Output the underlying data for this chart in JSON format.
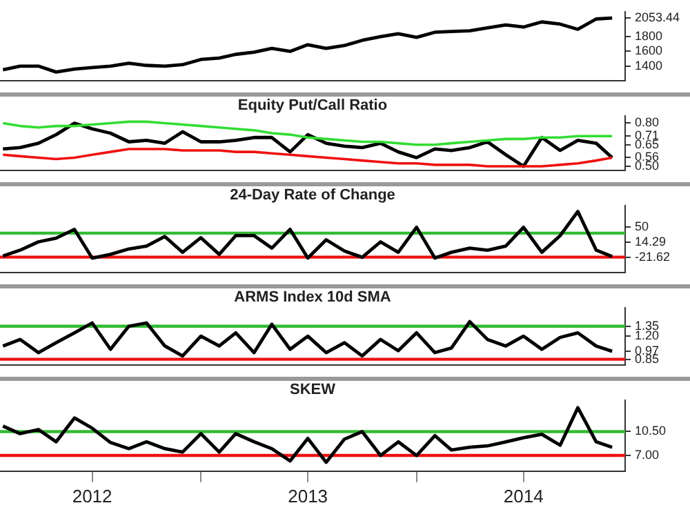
{
  "chart_data": [
    {
      "type": "line",
      "xlim": [
        "2012-01-27",
        "2014-12-20"
      ],
      "ylim": [
        1200,
        2140
      ],
      "yticks": [
        1400,
        1600,
        1800,
        2053.44
      ],
      "tick_labels": "y",
      "x": [
        "2012-02",
        "2012-03",
        "2012-04",
        "2012-05",
        "2012-06",
        "2012-07",
        "2012-08",
        "2012-09",
        "2012-10",
        "2012-11",
        "2012-12",
        "2013-01",
        "2013-02",
        "2013-03",
        "2013-04",
        "2013-05",
        "2013-06",
        "2013-07",
        "2013-08",
        "2013-09",
        "2013-10",
        "2013-11",
        "2013-12",
        "2014-01",
        "2014-02",
        "2014-03",
        "2014-04",
        "2014-05",
        "2014-06",
        "2014-07",
        "2014-08",
        "2014-09",
        "2014-10",
        "2014-11",
        "2014-11-28"
      ],
      "series": [
        {
          "color": "#000000",
          "values": [
            1350,
            1400,
            1400,
            1320,
            1360,
            1380,
            1400,
            1440,
            1410,
            1400,
            1420,
            1490,
            1510,
            1560,
            1590,
            1640,
            1600,
            1690,
            1640,
            1680,
            1750,
            1800,
            1840,
            1790,
            1860,
            1870,
            1880,
            1920,
            1960,
            1930,
            2000,
            1970,
            1900,
            2040,
            2053.44
          ]
        }
      ]
    },
    {
      "type": "line",
      "title": "Equity Put/Call Ratio",
      "xlim": [
        "2012-01-27",
        "2014-12-20"
      ],
      "ylim": [
        0.47,
        0.85
      ],
      "tick_labels": "y",
      "yticks": [
        {
          "value": 0.5,
          "label": "0.50"
        },
        0.56,
        0.65,
        0.71,
        {
          "value": 0.8,
          "label": "0.80"
        }
      ],
      "x": [
        "2012-02",
        "2012-03",
        "2012-04",
        "2012-05",
        "2012-06",
        "2012-07",
        "2012-08",
        "2012-09",
        "2012-10",
        "2012-11",
        "2012-12",
        "2013-01",
        "2013-02",
        "2013-03",
        "2013-04",
        "2013-05",
        "2013-06",
        "2013-07",
        "2013-08",
        "2013-09",
        "2013-10",
        "2013-11",
        "2013-12",
        "2014-01",
        "2014-02",
        "2014-03",
        "2014-04",
        "2014-05",
        "2014-06",
        "2014-07",
        "2014-08",
        "2014-09",
        "2014-10",
        "2014-11",
        "2014-11-28"
      ],
      "series": [
        {
          "color": "#33dd33",
          "values": [
            0.8,
            0.78,
            0.77,
            0.78,
            0.78,
            0.79,
            0.8,
            0.81,
            0.81,
            0.8,
            0.79,
            0.78,
            0.77,
            0.76,
            0.75,
            0.73,
            0.72,
            0.7,
            0.69,
            0.68,
            0.67,
            0.67,
            0.66,
            0.65,
            0.65,
            0.66,
            0.67,
            0.68,
            0.69,
            0.69,
            0.7,
            0.7,
            0.71,
            0.71,
            0.71
          ]
        },
        {
          "color": "#ee1111",
          "values": [
            0.58,
            0.57,
            0.56,
            0.55,
            0.56,
            0.58,
            0.6,
            0.62,
            0.62,
            0.62,
            0.61,
            0.61,
            0.61,
            0.6,
            0.6,
            0.59,
            0.58,
            0.57,
            0.56,
            0.55,
            0.54,
            0.53,
            0.52,
            0.52,
            0.51,
            0.51,
            0.51,
            0.5,
            0.5,
            0.5,
            0.5,
            0.51,
            0.52,
            0.54,
            0.56
          ]
        },
        {
          "color": "#000000",
          "values": [
            0.62,
            0.63,
            0.66,
            0.72,
            0.8,
            0.76,
            0.73,
            0.67,
            0.68,
            0.66,
            0.74,
            0.67,
            0.67,
            0.68,
            0.7,
            0.7,
            0.6,
            0.72,
            0.66,
            0.64,
            0.63,
            0.66,
            0.6,
            0.56,
            0.62,
            0.61,
            0.63,
            0.67,
            0.58,
            0.5,
            0.7,
            0.61,
            0.68,
            0.66,
            0.56
          ]
        }
      ]
    },
    {
      "type": "line",
      "title": "24-Day Rate of Change",
      "xlim": [
        "2012-01-27",
        "2014-12-20"
      ],
      "ylim": [
        -59,
        102
      ],
      "tick_labels": "y",
      "yticks": [
        -21.62,
        14.29,
        50
      ],
      "ref_lines": [
        {
          "axis": "y",
          "value": 36,
          "color": "#33bb33"
        },
        {
          "axis": "y",
          "value": -21.62,
          "color": "#ee1111"
        }
      ],
      "x": [
        "2012-02",
        "2012-03",
        "2012-04",
        "2012-05",
        "2012-06",
        "2012-07",
        "2012-08",
        "2012-09",
        "2012-10",
        "2012-11",
        "2012-12",
        "2013-01",
        "2013-02",
        "2013-03",
        "2013-04",
        "2013-05",
        "2013-06",
        "2013-07",
        "2013-08",
        "2013-09",
        "2013-10",
        "2013-11",
        "2013-12",
        "2014-01",
        "2014-02",
        "2014-03",
        "2014-04",
        "2014-05",
        "2014-06",
        "2014-07",
        "2014-08",
        "2014-09",
        "2014-10",
        "2014-11",
        "2014-11-28"
      ],
      "series": [
        {
          "color": "#000000",
          "values": [
            -19,
            -5,
            15,
            24,
            45,
            -24,
            -15,
            -2,
            5,
            28,
            -10,
            25,
            -15,
            30,
            30,
            0,
            45,
            -24,
            20,
            -7,
            -22,
            15,
            -10,
            50,
            -24,
            -10,
            0,
            -5,
            5,
            50,
            -10,
            30,
            88,
            -5,
            -20
          ]
        }
      ]
    },
    {
      "type": "line",
      "title": "ARMS Index 10d SMA",
      "xlim": [
        "2012-01-27",
        "2014-12-20"
      ],
      "ylim": [
        0.76,
        1.63
      ],
      "tick_labels": "y",
      "yticks": [
        0.85,
        0.97,
        {
          "value": 1.2,
          "label": "1.20"
        },
        1.35
      ],
      "ref_lines": [
        {
          "axis": "y",
          "value": 1.35,
          "color": "#33bb33"
        },
        {
          "axis": "y",
          "value": 0.85,
          "color": "#ee1111"
        }
      ],
      "x": [
        "2012-02",
        "2012-03",
        "2012-04",
        "2012-05",
        "2012-06",
        "2012-07",
        "2012-08",
        "2012-09",
        "2012-10",
        "2012-11",
        "2012-12",
        "2013-01",
        "2013-02",
        "2013-03",
        "2013-04",
        "2013-05",
        "2013-06",
        "2013-07",
        "2013-08",
        "2013-09",
        "2013-10",
        "2013-11",
        "2013-12",
        "2014-01",
        "2014-02",
        "2014-03",
        "2014-04",
        "2014-05",
        "2014-06",
        "2014-07",
        "2014-08",
        "2014-09",
        "2014-10",
        "2014-11",
        "2014-11-28"
      ],
      "series": [
        {
          "color": "#000000",
          "values": [
            1.05,
            1.15,
            0.95,
            1.1,
            1.25,
            1.4,
            1.0,
            1.35,
            1.4,
            1.05,
            0.9,
            1.2,
            1.05,
            1.25,
            0.95,
            1.38,
            1.0,
            1.2,
            0.95,
            1.1,
            0.9,
            1.15,
            0.98,
            1.25,
            0.95,
            1.02,
            1.42,
            1.15,
            1.05,
            1.2,
            1.0,
            1.18,
            1.25,
            1.05,
            0.97
          ]
        }
      ]
    },
    {
      "type": "line",
      "title": "SKEW",
      "xlim": [
        "2012-01-27",
        "2014-12-20"
      ],
      "ylim": [
        4.7,
        15.1
      ],
      "yticks": [
        {
          "value": 7,
          "label": "7.00"
        },
        {
          "value": 10.5,
          "label": "10.50"
        }
      ],
      "xticks": [
        {
          "value": "2012-07-01",
          "label": "2012"
        },
        {
          "value": "2013-01-01",
          "label": null
        },
        {
          "value": "2013-07-01",
          "label": "2013"
        },
        {
          "value": "2014-01-01",
          "label": null
        },
        {
          "value": "2014-07-01",
          "label": "2014"
        }
      ],
      "ref_lines": [
        {
          "axis": "y",
          "value": 10.5,
          "color": "#33bb33"
        },
        {
          "axis": "y",
          "value": 7,
          "color": "#ee1111"
        }
      ],
      "x": [
        "2012-02",
        "2012-03",
        "2012-04",
        "2012-05",
        "2012-06",
        "2012-07",
        "2012-08",
        "2012-09",
        "2012-10",
        "2012-11",
        "2012-12",
        "2013-01",
        "2013-02",
        "2013-03",
        "2013-04",
        "2013-05",
        "2013-06",
        "2013-07",
        "2013-08",
        "2013-09",
        "2013-10",
        "2013-11",
        "2013-12",
        "2014-01",
        "2014-02",
        "2014-03",
        "2014-04",
        "2014-05",
        "2014-06",
        "2014-07",
        "2014-08",
        "2014-09",
        "2014-10",
        "2014-11",
        "2014-11-28"
      ],
      "series": [
        {
          "color": "#000000",
          "values": [
            11.3,
            10.2,
            10.8,
            9.0,
            12.5,
            11.0,
            8.9,
            8.0,
            9.0,
            8.0,
            7.5,
            10.2,
            7.5,
            10.2,
            9.0,
            8.0,
            6.2,
            9.5,
            6.0,
            9.4,
            10.5,
            7.0,
            9.0,
            7.0,
            9.9,
            7.8,
            8.2,
            8.4,
            9.0,
            9.6,
            10.1,
            8.5,
            14.0,
            9.0,
            8.2
          ]
        }
      ]
    }
  ]
}
